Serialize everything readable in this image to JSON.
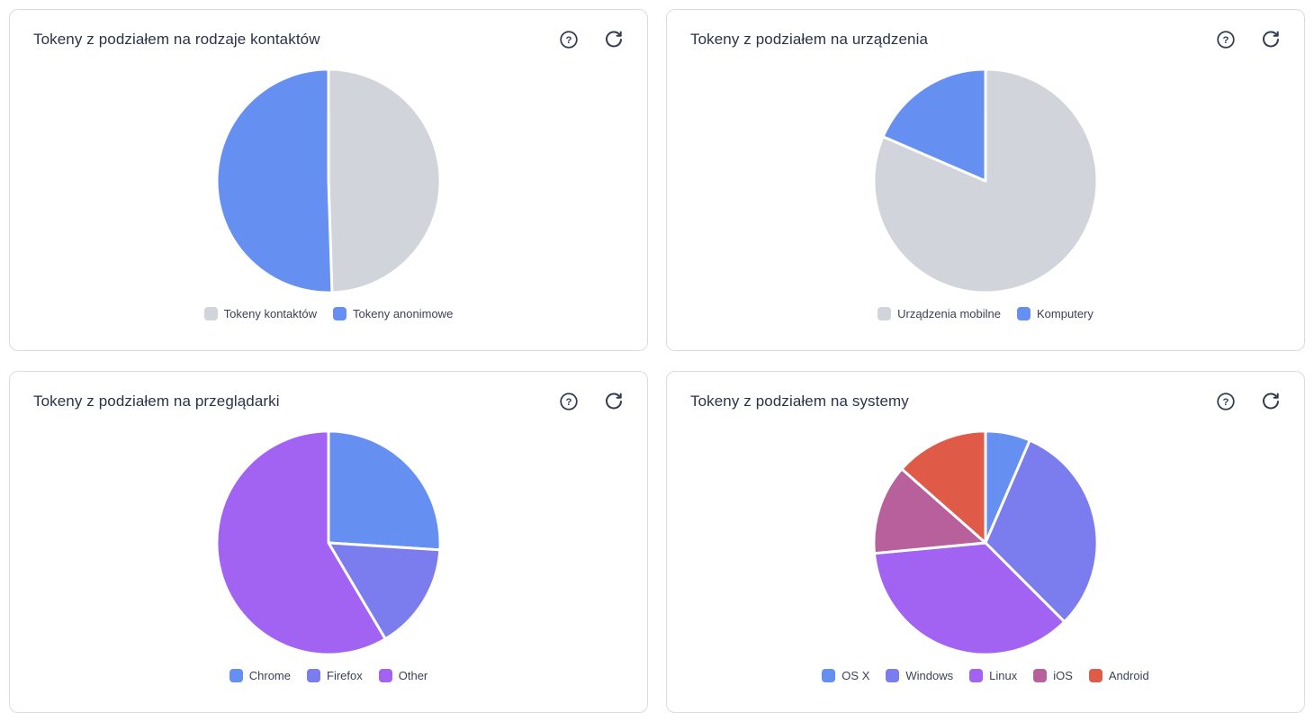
{
  "icons": {
    "help": "question-mark-circle-icon",
    "help_glyph": "?",
    "refresh": "reload-arrow-icon"
  },
  "theme": {
    "card_border": "#d9dce6",
    "title_color": "#2b3348",
    "legend_text_color": "#3b4254",
    "icon_color": "#333b4e",
    "slice_separator": "#ffffff"
  },
  "chart_data": [
    {
      "type": "pie",
      "title": "Tokeny z podziałem na rodzaje kontaktów",
      "legend_position": "bottom",
      "value_unit": "percent_estimated",
      "start_angle": "top",
      "direction": "clockwise",
      "slices": [
        {
          "label": "Tokeny kontaktów",
          "value": 49.5,
          "color": "#d2d4dc"
        },
        {
          "label": "Tokeny anonimowe",
          "value": 50.5,
          "color": "#6590f1"
        }
      ]
    },
    {
      "type": "pie",
      "title": "Tokeny z podziałem na urządzenia",
      "legend_position": "bottom",
      "value_unit": "percent_estimated",
      "start_angle": "top",
      "direction": "clockwise",
      "slices": [
        {
          "label": "Urządzenia mobilne",
          "value": 81.5,
          "color": "#d2d4dc"
        },
        {
          "label": "Komputery",
          "value": 18.5,
          "color": "#6590f1"
        }
      ]
    },
    {
      "type": "pie",
      "title": "Tokeny z podziałem na przeglądarki",
      "legend_position": "bottom",
      "value_unit": "percent_estimated",
      "start_angle": "top",
      "direction": "clockwise",
      "slices": [
        {
          "label": "Chrome",
          "value": 26,
          "color": "#6590f1"
        },
        {
          "label": "Firefox",
          "value": 15.5,
          "color": "#7b7ced"
        },
        {
          "label": "Other",
          "value": 58.5,
          "color": "#a263f2"
        }
      ]
    },
    {
      "type": "pie",
      "title": "Tokeny z podziałem na systemy",
      "legend_position": "bottom",
      "value_unit": "percent_estimated",
      "start_angle": "top",
      "direction": "clockwise",
      "slices": [
        {
          "label": "OS X",
          "value": 6.5,
          "color": "#6590f1"
        },
        {
          "label": "Windows",
          "value": 31,
          "color": "#7b7ced"
        },
        {
          "label": "Linux",
          "value": 36,
          "color": "#a263f2"
        },
        {
          "label": "iOS",
          "value": 13,
          "color": "#b8609c"
        },
        {
          "label": "Android",
          "value": 13.5,
          "color": "#e05a48"
        }
      ]
    }
  ]
}
